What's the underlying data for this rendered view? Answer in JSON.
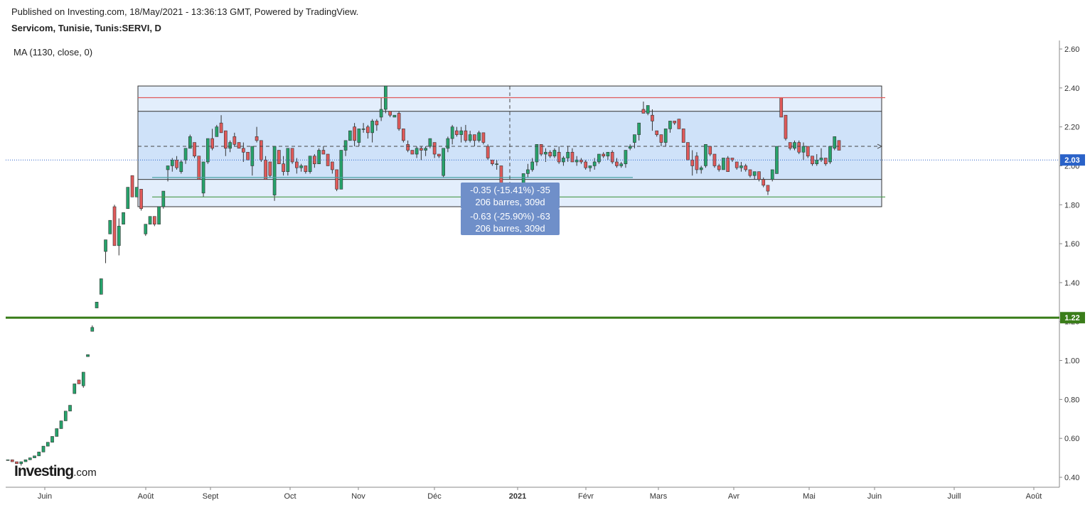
{
  "header": {
    "published": "Published on Investing.com, 18/May/2021 - 13:36:13 GMT, Powered by TradingView.",
    "symbol": "Servicom, Tunisie, Tunis:SERVI, D"
  },
  "indicator_label": "MA (1130, close, 0)",
  "logo": {
    "name": "Investing",
    "tld": ".com"
  },
  "colors": {
    "up": "#26a36b",
    "down": "#e05a5a",
    "range_fill": "#cfe2f9",
    "ma_line": "#3a7d1a",
    "price_badge": "#2a62c8",
    "resistance": "#e05a5a",
    "support": "#4a9a4a"
  },
  "measure_tooltips": [
    {
      "line1": "-0.35 (-15.41%) -35",
      "line2": "206 barres, 309d"
    },
    {
      "line1": "-0.63 (-25.90%) -63",
      "line2": "206 barres, 309d"
    }
  ],
  "chart_data": {
    "type": "candlestick",
    "ylim": [
      0.35,
      2.65
    ],
    "y_ticks": [
      "2.60",
      "2.40",
      "2.20",
      "2.00",
      "1.80",
      "1.60",
      "1.40",
      "1.20",
      "1.00",
      "0.80",
      "0.60",
      "0.40"
    ],
    "x_ticks": [
      "Juin",
      "Août",
      "Sept",
      "Oct",
      "Nov",
      "Déc",
      "2021",
      "Févr",
      "Mars",
      "Avr",
      "Mai",
      "Juin",
      "Juill",
      "Août"
    ],
    "last_price": 2.03,
    "last_price_label": "2.03",
    "ma_value": 1.22,
    "ma_label": "1.22",
    "resistance": 2.35,
    "support": 1.84,
    "support_inner": 1.94,
    "range_box": [
      1.79,
      2.41
    ],
    "range_mid": 2.1,
    "candles": [
      [
        0.49,
        0.49,
        0.49,
        0.49
      ],
      [
        0.49,
        0.49,
        0.48,
        0.48
      ],
      [
        0.48,
        0.48,
        0.47,
        0.47
      ],
      [
        0.47,
        0.48,
        0.46,
        0.48
      ],
      [
        0.48,
        0.49,
        0.48,
        0.49
      ],
      [
        0.49,
        0.5,
        0.49,
        0.5
      ],
      [
        0.5,
        0.51,
        0.5,
        0.51
      ],
      [
        0.51,
        0.53,
        0.51,
        0.53
      ],
      [
        0.53,
        0.56,
        0.53,
        0.56
      ],
      [
        0.56,
        0.58,
        0.56,
        0.58
      ],
      [
        0.58,
        0.61,
        0.58,
        0.61
      ],
      [
        0.61,
        0.65,
        0.61,
        0.65
      ],
      [
        0.65,
        0.69,
        0.65,
        0.69
      ],
      [
        0.69,
        0.74,
        0.69,
        0.74
      ],
      [
        0.74,
        0.77,
        0.74,
        0.77
      ],
      [
        0.83,
        0.88,
        0.83,
        0.88
      ],
      [
        0.9,
        0.9,
        0.88,
        0.88
      ],
      [
        0.87,
        0.94,
        0.86,
        0.94
      ],
      [
        1.02,
        1.03,
        1.02,
        1.03
      ],
      [
        1.15,
        1.18,
        1.15,
        1.17
      ],
      [
        1.27,
        1.3,
        1.27,
        1.3
      ],
      [
        1.34,
        1.42,
        1.34,
        1.42
      ],
      [
        1.56,
        1.62,
        1.5,
        1.62
      ],
      [
        1.65,
        1.72,
        1.65,
        1.72
      ],
      [
        1.79,
        1.8,
        1.59,
        1.59
      ],
      [
        1.59,
        1.73,
        1.54,
        1.69
      ],
      [
        1.7,
        1.76,
        1.7,
        1.76
      ],
      [
        1.78,
        1.89,
        1.78,
        1.89
      ],
      [
        1.95,
        1.95,
        1.84,
        1.84
      ],
      [
        1.84,
        1.89,
        1.84,
        1.89
      ],
      [
        1.88,
        1.88,
        1.77,
        1.78
      ],
      [
        1.65,
        1.7,
        1.64,
        1.7
      ],
      [
        1.7,
        1.74,
        1.7,
        1.74
      ],
      [
        1.74,
        1.74,
        1.69,
        1.7
      ],
      [
        1.7,
        1.79,
        1.7,
        1.79
      ],
      [
        1.79,
        1.87,
        1.78,
        1.87
      ],
      [
        1.98,
        2.0,
        1.92,
        2.0
      ],
      [
        2.0,
        2.04,
        1.97,
        2.03
      ],
      [
        2.03,
        2.05,
        1.98,
        1.99
      ],
      [
        1.97,
        2.03,
        1.96,
        2.02
      ],
      [
        2.03,
        2.09,
        2.01,
        2.09
      ],
      [
        2.09,
        2.16,
        2.09,
        2.15
      ],
      [
        2.12,
        2.12,
        2.04,
        2.05
      ],
      [
        2.05,
        2.05,
        1.93,
        1.93
      ],
      [
        1.86,
        2.02,
        1.84,
        2.02
      ],
      [
        2.02,
        2.14,
        2.01,
        2.14
      ],
      [
        2.14,
        2.19,
        2.08,
        2.09
      ],
      [
        2.15,
        2.21,
        2.15,
        2.2
      ],
      [
        2.22,
        2.26,
        2.17,
        2.17
      ],
      [
        2.18,
        2.18,
        2.05,
        2.09
      ],
      [
        2.09,
        2.13,
        2.07,
        2.12
      ],
      [
        2.15,
        2.17,
        2.1,
        2.11
      ],
      [
        2.12,
        2.12,
        2.09,
        2.09
      ],
      [
        2.09,
        2.12,
        2.02,
        2.07
      ],
      [
        2.07,
        2.07,
        2.03,
        2.03
      ],
      [
        2.0,
        2.1,
        1.95,
        2.1
      ],
      [
        2.15,
        2.2,
        2.12,
        2.13
      ],
      [
        2.13,
        2.13,
        2.02,
        2.03
      ],
      [
        2.03,
        2.05,
        1.93,
        1.93
      ],
      [
        2.02,
        2.02,
        1.94,
        1.95
      ],
      [
        1.85,
        2.1,
        1.82,
        2.1
      ],
      [
        2.08,
        2.08,
        2.01,
        2.01
      ],
      [
        2.01,
        2.05,
        1.95,
        1.97
      ],
      [
        1.97,
        2.09,
        1.95,
        2.09
      ],
      [
        2.09,
        2.09,
        2.01,
        2.02
      ],
      [
        2.02,
        2.04,
        1.96,
        1.99
      ],
      [
        1.99,
        2.01,
        1.97,
        2.0
      ],
      [
        2.0,
        2.0,
        1.96,
        1.97
      ],
      [
        1.97,
        2.05,
        1.96,
        2.05
      ],
      [
        2.05,
        2.06,
        1.99,
        2.01
      ],
      [
        2.01,
        2.09,
        2.01,
        2.08
      ],
      [
        2.08,
        2.1,
        2.06,
        2.06
      ],
      [
        2.06,
        2.06,
        2.0,
        2.0
      ],
      [
        2.02,
        2.02,
        1.96,
        1.98
      ],
      [
        1.98,
        1.98,
        1.87,
        1.88
      ],
      [
        1.88,
        2.08,
        1.88,
        2.08
      ],
      [
        2.08,
        2.13,
        2.05,
        2.13
      ],
      [
        2.13,
        2.18,
        2.13,
        2.18
      ],
      [
        2.2,
        2.22,
        2.1,
        2.13
      ],
      [
        2.12,
        2.19,
        2.1,
        2.19
      ],
      [
        2.19,
        2.22,
        2.17,
        2.19
      ],
      [
        2.2,
        2.21,
        2.14,
        2.17
      ],
      [
        2.17,
        2.24,
        2.12,
        2.23
      ],
      [
        2.23,
        2.24,
        2.18,
        2.21
      ],
      [
        2.25,
        2.35,
        2.23,
        2.29
      ],
      [
        2.29,
        2.41,
        2.27,
        2.41
      ],
      [
        2.28,
        2.28,
        2.25,
        2.26
      ],
      [
        2.25,
        2.26,
        2.25,
        2.26
      ],
      [
        2.27,
        2.28,
        2.18,
        2.19
      ],
      [
        2.19,
        2.19,
        2.12,
        2.13
      ],
      [
        2.11,
        2.13,
        2.07,
        2.08
      ],
      [
        2.08,
        2.08,
        2.06,
        2.06
      ],
      [
        2.06,
        2.1,
        2.04,
        2.09
      ],
      [
        2.09,
        2.1,
        2.03,
        2.08
      ],
      [
        2.08,
        2.1,
        2.05,
        2.09
      ],
      [
        2.1,
        2.14,
        2.09,
        2.14
      ],
      [
        2.12,
        2.12,
        2.04,
        2.06
      ],
      [
        2.06,
        2.06,
        2.04,
        2.05
      ],
      [
        1.95,
        2.09,
        1.94,
        2.09
      ],
      [
        2.09,
        2.15,
        2.07,
        2.14
      ],
      [
        2.14,
        2.21,
        2.11,
        2.2
      ],
      [
        2.18,
        2.2,
        2.15,
        2.16
      ],
      [
        2.16,
        2.2,
        2.12,
        2.18
      ],
      [
        2.18,
        2.21,
        2.12,
        2.13
      ],
      [
        2.13,
        2.18,
        2.12,
        2.16
      ],
      [
        2.16,
        2.16,
        2.1,
        2.13
      ],
      [
        2.13,
        2.18,
        2.12,
        2.17
      ],
      [
        2.17,
        2.17,
        2.11,
        2.12
      ],
      [
        2.1,
        2.11,
        2.03,
        2.04
      ],
      [
        2.03,
        2.03,
        2.0,
        2.01
      ],
      [
        2.01,
        2.03,
        1.98,
        2.01
      ],
      [
        2.0,
        2.0,
        1.88,
        1.88
      ],
      [
        1.88,
        1.88,
        1.85,
        1.85
      ],
      [
        1.83,
        1.88,
        1.79,
        1.88
      ],
      [
        1.88,
        1.88,
        1.84,
        1.84
      ],
      [
        1.84,
        1.88,
        1.83,
        1.88
      ],
      [
        1.88,
        1.96,
        1.86,
        1.96
      ],
      [
        1.96,
        2.01,
        1.94,
        1.98
      ],
      [
        1.98,
        2.04,
        1.97,
        2.02
      ],
      [
        2.02,
        2.11,
        2.0,
        2.11
      ],
      [
        2.11,
        2.11,
        2.05,
        2.06
      ],
      [
        2.06,
        2.09,
        2.02,
        2.07
      ],
      [
        2.07,
        2.08,
        2.04,
        2.05
      ],
      [
        2.05,
        2.09,
        2.04,
        2.08
      ],
      [
        2.07,
        2.1,
        2.01,
        2.02
      ],
      [
        2.02,
        2.05,
        2.0,
        2.04
      ],
      [
        2.04,
        2.1,
        2.02,
        2.07
      ],
      [
        2.07,
        2.09,
        2.02,
        2.02
      ],
      [
        2.02,
        2.05,
        2.0,
        2.03
      ],
      [
        2.03,
        2.04,
        2.01,
        2.02
      ],
      [
        2.02,
        2.03,
        1.98,
        1.99
      ],
      [
        1.99,
        2.0,
        1.97,
        2.0
      ],
      [
        2.0,
        2.04,
        1.98,
        2.02
      ],
      [
        2.02,
        2.06,
        2.01,
        2.06
      ],
      [
        2.06,
        2.07,
        2.04,
        2.05
      ],
      [
        2.05,
        2.07,
        2.03,
        2.07
      ],
      [
        2.07,
        2.08,
        2.01,
        2.02
      ],
      [
        2.02,
        2.04,
        1.99,
        2.0
      ],
      [
        2.0,
        2.02,
        1.99,
        2.01
      ],
      [
        2.01,
        2.08,
        1.99,
        2.08
      ],
      [
        2.09,
        2.11,
        2.08,
        2.1
      ],
      [
        2.12,
        2.16,
        2.09,
        2.16
      ],
      [
        2.16,
        2.22,
        2.13,
        2.22
      ],
      [
        2.29,
        2.33,
        2.27,
        2.27
      ],
      [
        2.27,
        2.31,
        2.26,
        2.31
      ],
      [
        2.26,
        2.29,
        2.18,
        2.23
      ],
      [
        2.18,
        2.18,
        2.15,
        2.16
      ],
      [
        2.16,
        2.16,
        2.1,
        2.12
      ],
      [
        2.12,
        2.19,
        2.1,
        2.19
      ],
      [
        2.19,
        2.23,
        2.17,
        2.23
      ],
      [
        2.23,
        2.23,
        2.21,
        2.22
      ],
      [
        2.24,
        2.24,
        2.19,
        2.19
      ],
      [
        2.19,
        2.19,
        2.12,
        2.12
      ],
      [
        2.12,
        2.12,
        2.03,
        2.03
      ],
      [
        2.03,
        2.08,
        1.95,
        2.0
      ],
      [
        2.05,
        2.07,
        1.96,
        1.98
      ],
      [
        1.98,
        2.0,
        1.96,
        1.99
      ],
      [
        2.0,
        2.11,
        1.99,
        2.11
      ],
      [
        2.1,
        2.1,
        2.05,
        2.06
      ],
      [
        2.06,
        2.06,
        1.99,
        2.0
      ],
      [
        2.0,
        2.01,
        1.97,
        1.98
      ],
      [
        1.98,
        2.04,
        1.98,
        2.04
      ],
      [
        2.04,
        2.05,
        1.97,
        1.97
      ],
      [
        2.04,
        2.04,
        2.02,
        2.03
      ],
      [
        2.02,
        2.02,
        1.98,
        1.99
      ],
      [
        1.99,
        2.02,
        1.97,
        2.0
      ],
      [
        2.0,
        2.01,
        1.97,
        1.98
      ],
      [
        1.98,
        1.98,
        1.94,
        1.95
      ],
      [
        1.95,
        1.97,
        1.93,
        1.97
      ],
      [
        1.97,
        1.97,
        1.92,
        1.93
      ],
      [
        1.93,
        1.94,
        1.89,
        1.9
      ],
      [
        1.9,
        1.9,
        1.85,
        1.87
      ],
      [
        1.93,
        1.98,
        1.92,
        1.98
      ],
      [
        1.96,
        2.1,
        1.96,
        2.1
      ],
      [
        2.35,
        2.35,
        2.25,
        2.25
      ],
      [
        2.26,
        2.26,
        2.13,
        2.14
      ],
      [
        2.12,
        2.12,
        2.08,
        2.09
      ],
      [
        2.09,
        2.13,
        2.08,
        2.12
      ],
      [
        2.12,
        2.13,
        2.06,
        2.07
      ],
      [
        2.07,
        2.12,
        2.03,
        2.1
      ],
      [
        2.1,
        2.1,
        2.04,
        2.05
      ],
      [
        2.05,
        2.05,
        2.0,
        2.01
      ],
      [
        2.01,
        2.06,
        2.0,
        2.03
      ],
      [
        2.03,
        2.09,
        2.02,
        2.04
      ],
      [
        2.04,
        2.04,
        2.0,
        2.01
      ],
      [
        2.02,
        2.1,
        2.01,
        2.1
      ],
      [
        2.09,
        2.15,
        2.08,
        2.15
      ],
      [
        2.13,
        2.13,
        2.08,
        2.08
      ]
    ]
  }
}
